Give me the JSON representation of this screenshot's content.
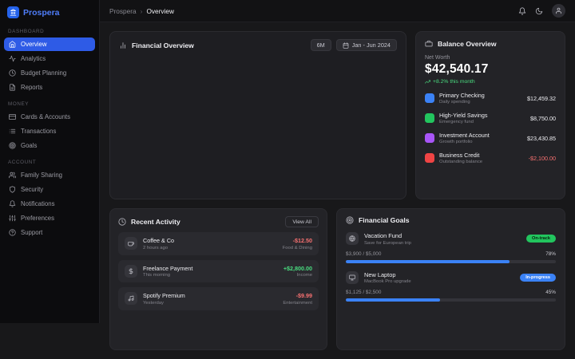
{
  "app": {
    "name": "Prospera",
    "logo_color": "#2563eb",
    "brand_text_color": "#4f7df9"
  },
  "colors": {
    "accent": "#2e5be6",
    "positive": "#4ade80",
    "negative": "#f87171"
  },
  "header": {
    "breadcrumb_root": "Prospera",
    "breadcrumb_sep": "›",
    "breadcrumb_current": "Overview"
  },
  "sidebar": {
    "sections": [
      {
        "title": "DASHBOARD",
        "items": [
          {
            "label": "Overview"
          },
          {
            "label": "Analytics"
          },
          {
            "label": "Budget Planning"
          },
          {
            "label": "Reports"
          }
        ]
      },
      {
        "title": "MONEY",
        "items": [
          {
            "label": "Cards & Accounts"
          },
          {
            "label": "Transactions"
          },
          {
            "label": "Goals"
          }
        ]
      },
      {
        "title": "ACCOUNT",
        "items": [
          {
            "label": "Family Sharing"
          },
          {
            "label": "Security"
          },
          {
            "label": "Notifications"
          },
          {
            "label": "Preferences"
          },
          {
            "label": "Support"
          }
        ]
      }
    ]
  },
  "financial_overview": {
    "title": "Financial Overview",
    "range_button": "6M",
    "date_button": "Jan - Jun 2024"
  },
  "balance_overview": {
    "title": "Balance Overview",
    "net_worth_label": "Net Worth",
    "net_worth": "$42,540.17",
    "change": "+8.2% this month",
    "accounts": [
      {
        "name": "Primary Checking",
        "sub": "Daily spending",
        "amount": "$12,459.32",
        "color": "#3b82f6"
      },
      {
        "name": "High-Yield Savings",
        "sub": "Emergency fund",
        "amount": "$8,750.00",
        "color": "#22c55e"
      },
      {
        "name": "Investment Account",
        "sub": "Growth portfolio",
        "amount": "$23,430.85",
        "color": "#a855f7"
      },
      {
        "name": "Business Credit",
        "sub": "Outstanding balance",
        "amount": "-$2,100.00",
        "color": "#ef4444",
        "amount_color": "#f87171"
      }
    ]
  },
  "recent_activity": {
    "title": "Recent Activity",
    "view_all": "View All",
    "items": [
      {
        "name": "Coffee & Co",
        "time": "2 hours ago",
        "amount": "-$12.50",
        "amount_color": "#f87171",
        "category": "Food & Dining"
      },
      {
        "name": "Freelance Payment",
        "time": "This morning",
        "amount": "+$2,800.00",
        "amount_color": "#4ade80",
        "category": "Income"
      },
      {
        "name": "Spotify Premium",
        "time": "Yesterday",
        "amount": "-$9.99",
        "amount_color": "#f87171",
        "category": "Entertainment"
      }
    ]
  },
  "financial_goals": {
    "title": "Financial Goals",
    "progress_color": "#3b82f6",
    "goals": [
      {
        "name": "Vacation Fund",
        "sub": "Save for European trip",
        "badge": "On-track",
        "badge_bg": "#22c55e",
        "badge_fg": "#07210f",
        "progress_label": "$3,900 / $5,000",
        "percent": "78%",
        "percent_value": 78
      },
      {
        "name": "New Laptop",
        "sub": "MacBook Pro upgrade",
        "badge": "In-progress",
        "badge_bg": "#3b82f6",
        "badge_fg": "#ffffff",
        "progress_label": "$1,125 / $2,500",
        "percent": "45%",
        "percent_value": 45
      }
    ]
  }
}
